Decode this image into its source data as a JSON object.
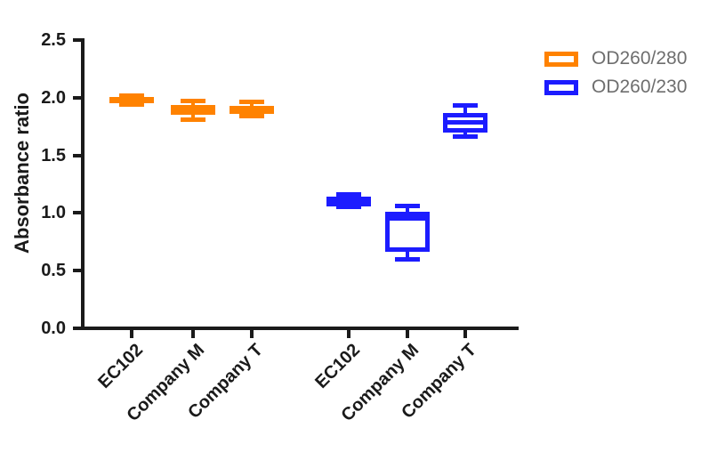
{
  "figure": {
    "ylabel": "Absorbance ratio"
  },
  "legend": {
    "entries": [
      {
        "label": "OD260/280",
        "color": "#FF8200"
      },
      {
        "label": "OD260/230",
        "color": "#1C1CFF"
      }
    ]
  },
  "chart_data": {
    "type": "boxplot",
    "title": "",
    "xlabel": "",
    "ylabel": "Absorbance ratio",
    "ylim": [
      0,
      2.5
    ],
    "yticks": [
      0.0,
      0.5,
      1.0,
      1.5,
      2.0,
      2.5
    ],
    "grid": false,
    "legend_position": "top-right",
    "categories": [
      "EC102",
      "Company M",
      "Company T",
      "EC102",
      "Company M",
      "Company T"
    ],
    "series": [
      {
        "name": "OD260/280",
        "color": "#FF8200",
        "boxes": [
          {
            "category": "EC102",
            "x_index": 0,
            "min": 1.94,
            "q1": 1.95,
            "median": 1.98,
            "q3": 2.01,
            "max": 2.02
          },
          {
            "category": "Company M",
            "x_index": 1,
            "min": 1.81,
            "q1": 1.85,
            "median": 1.9,
            "q3": 1.94,
            "max": 1.97
          },
          {
            "category": "Company T",
            "x_index": 2,
            "min": 1.84,
            "q1": 1.86,
            "median": 1.9,
            "q3": 1.93,
            "max": 1.96
          }
        ]
      },
      {
        "name": "OD260/230",
        "color": "#1C1CFF",
        "boxes": [
          {
            "category": "EC102",
            "x_index": 3,
            "min": 1.05,
            "q1": 1.06,
            "median": 1.11,
            "q3": 1.14,
            "max": 1.16
          },
          {
            "category": "Company M",
            "x_index": 4,
            "min": 0.6,
            "q1": 0.66,
            "median": 0.95,
            "q3": 1.01,
            "max": 1.06
          },
          {
            "category": "Company T",
            "x_index": 5,
            "min": 1.66,
            "q1": 1.7,
            "median": 1.79,
            "q3": 1.87,
            "max": 1.93
          }
        ]
      }
    ]
  }
}
